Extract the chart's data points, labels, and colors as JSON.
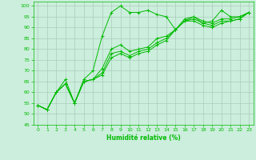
{
  "title": "",
  "xlabel": "Humidité relative (%)",
  "ylabel": "",
  "bg_color": "#cceedd",
  "grid_color": "#aaccbb",
  "line_color": "#00bb00",
  "marker": "+",
  "xlim": [
    -0.5,
    23.5
  ],
  "ylim": [
    45,
    102
  ],
  "yticks": [
    45,
    50,
    55,
    60,
    65,
    70,
    75,
    80,
    85,
    90,
    95,
    100
  ],
  "xticks": [
    0,
    1,
    2,
    3,
    4,
    5,
    6,
    7,
    8,
    9,
    10,
    11,
    12,
    13,
    14,
    15,
    16,
    17,
    18,
    19,
    20,
    21,
    22,
    23
  ],
  "series": [
    [
      54,
      52,
      60,
      66,
      55,
      66,
      70,
      86,
      97,
      100,
      97,
      97,
      98,
      96,
      95,
      89,
      93,
      95,
      92,
      93,
      98,
      95,
      95,
      97
    ],
    [
      54,
      52,
      60,
      64,
      55,
      65,
      66,
      71,
      80,
      82,
      79,
      80,
      81,
      85,
      86,
      89,
      94,
      95,
      93,
      92,
      94,
      94,
      95,
      97
    ],
    [
      54,
      52,
      60,
      64,
      55,
      65,
      66,
      69,
      78,
      79,
      77,
      79,
      80,
      83,
      85,
      89,
      93,
      94,
      92,
      91,
      93,
      93,
      94,
      97
    ],
    [
      54,
      52,
      60,
      64,
      55,
      65,
      66,
      68,
      76,
      78,
      76,
      78,
      79,
      82,
      84,
      89,
      93,
      93,
      91,
      90,
      92,
      93,
      94,
      97
    ]
  ]
}
